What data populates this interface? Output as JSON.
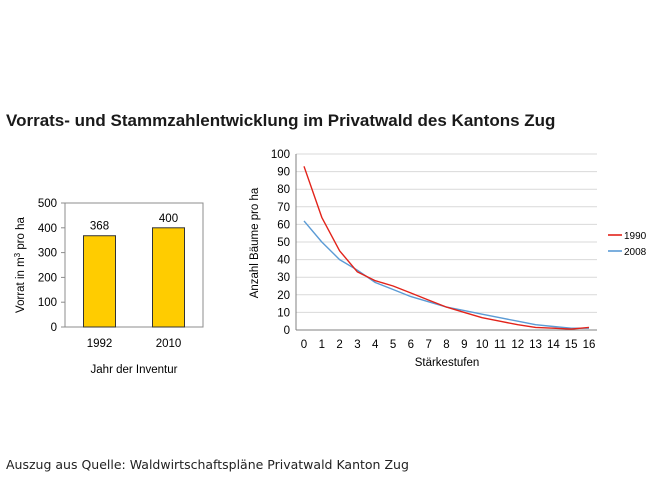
{
  "page": {
    "title": "Vorrats- und Stammzahlentwicklung im Privatwald des Kantons Zug",
    "source": "Auszug aus Quelle: Waldwirtschaftspläne Privatwald Kanton Zug"
  },
  "colors": {
    "bar_fill": "#FFCC00",
    "bar_stroke": "#333333",
    "series_1990": "#E2231A",
    "series_2008": "#5B9BD5",
    "gridline": "#D9D9D9",
    "axis": "#808080"
  },
  "chart_data": [
    {
      "type": "bar",
      "categories": [
        "1992",
        "2010"
      ],
      "values": [
        368,
        400
      ],
      "data_labels": [
        "368",
        "400"
      ],
      "xlabel": "Jahr der Inventur",
      "ylabel": "Vorrat in m3 pro ha",
      "ylim": [
        0,
        500
      ],
      "yticks": [
        0,
        100,
        200,
        300,
        400,
        500
      ],
      "grid": false,
      "legend": "none"
    },
    {
      "type": "line",
      "x": [
        0,
        1,
        2,
        3,
        4,
        5,
        6,
        7,
        8,
        9,
        10,
        11,
        12,
        13,
        14,
        15,
        16
      ],
      "series": [
        {
          "name": "1990",
          "values": [
            93,
            64,
            45,
            33,
            28,
            25,
            21,
            17,
            13,
            10,
            7,
            5,
            3,
            1.5,
            1,
            0.5,
            1.5
          ]
        },
        {
          "name": "2008",
          "values": [
            62,
            50,
            40,
            34,
            27,
            23,
            19,
            16,
            13,
            11,
            9,
            7,
            5,
            3,
            2,
            1,
            1
          ]
        }
      ],
      "xlabel": "Stärkestufen",
      "ylabel": "Anzahl Bäume pro ha",
      "ylim": [
        0,
        100
      ],
      "yticks": [
        0,
        10,
        20,
        30,
        40,
        50,
        60,
        70,
        80,
        90,
        100
      ],
      "grid": true,
      "legend": "right"
    }
  ]
}
